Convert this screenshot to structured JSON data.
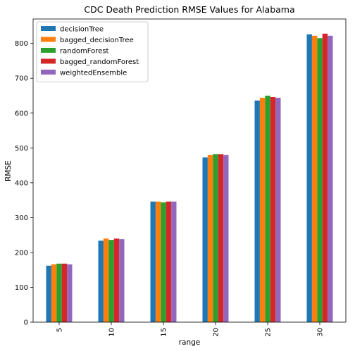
{
  "chart_data": {
    "type": "bar",
    "title": "CDC Death Prediction RMSE Values for Alabama",
    "xlabel": "range",
    "ylabel": "RMSE",
    "categories": [
      "5",
      "10",
      "15",
      "20",
      "25",
      "30"
    ],
    "ylim": [
      0,
      870
    ],
    "yticks": [
      0,
      100,
      200,
      300,
      400,
      500,
      600,
      700,
      800
    ],
    "grid": false,
    "legend_position": "top-left",
    "series": [
      {
        "name": "decisionTree",
        "color": "#1f77b4",
        "values": [
          162,
          234,
          346,
          473,
          636,
          826
        ]
      },
      {
        "name": "bagged_decisionTree",
        "color": "#ff7f0e",
        "values": [
          166,
          240,
          346,
          480,
          644,
          822
        ]
      },
      {
        "name": "randomForest",
        "color": "#2ca02c",
        "values": [
          168,
          236,
          344,
          482,
          650,
          815
        ]
      },
      {
        "name": "bagged_randomForest",
        "color": "#d62728",
        "values": [
          168,
          240,
          346,
          482,
          646,
          828
        ]
      },
      {
        "name": "weightedEnsemble",
        "color": "#9467bd",
        "values": [
          166,
          238,
          346,
          480,
          644,
          822
        ]
      }
    ]
  }
}
